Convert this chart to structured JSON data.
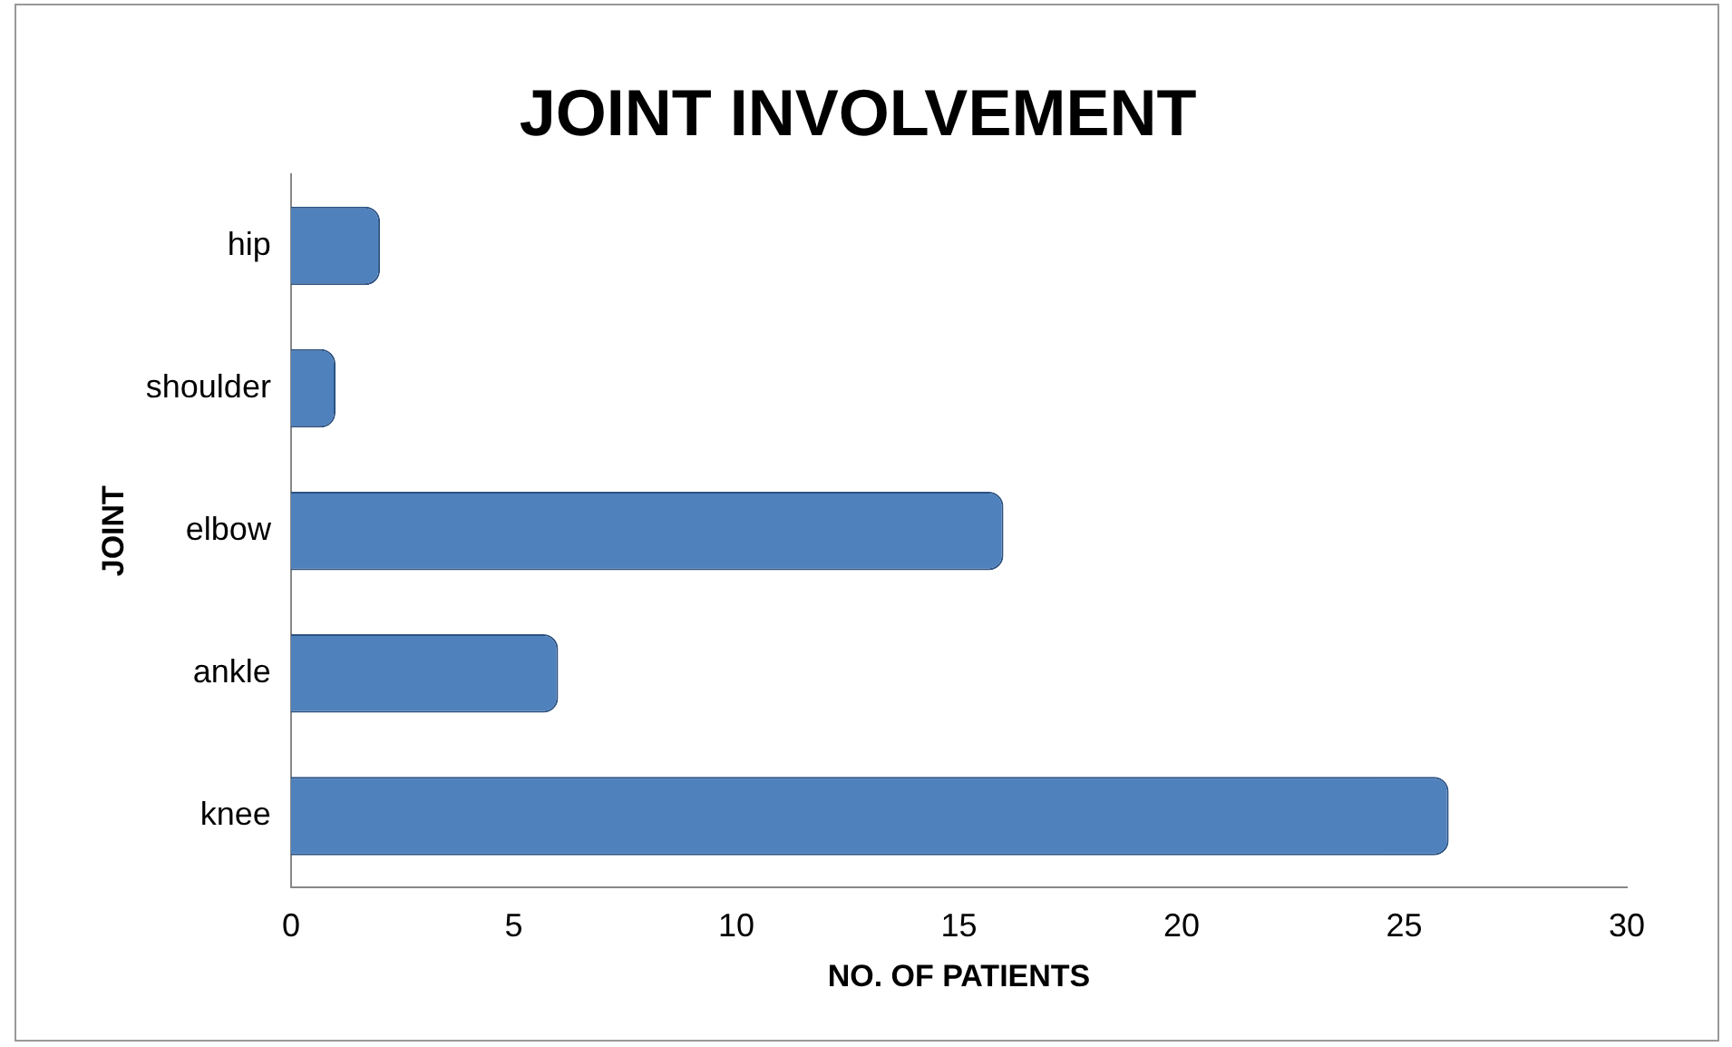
{
  "chart_data": {
    "type": "bar",
    "orientation": "horizontal",
    "title": "JOINT INVOLVEMENT",
    "xlabel": "NO. OF PATIENTS",
    "ylabel": "JOINT",
    "categories": [
      "hip",
      "shoulder",
      "elbow",
      "ankle",
      "knee"
    ],
    "values": [
      2,
      1,
      16,
      6,
      26
    ],
    "color": "#4f81bd",
    "xlim": [
      0,
      30
    ],
    "xticks": [
      0,
      5,
      10,
      15,
      20,
      25,
      30
    ],
    "grid": false,
    "legend": false
  }
}
